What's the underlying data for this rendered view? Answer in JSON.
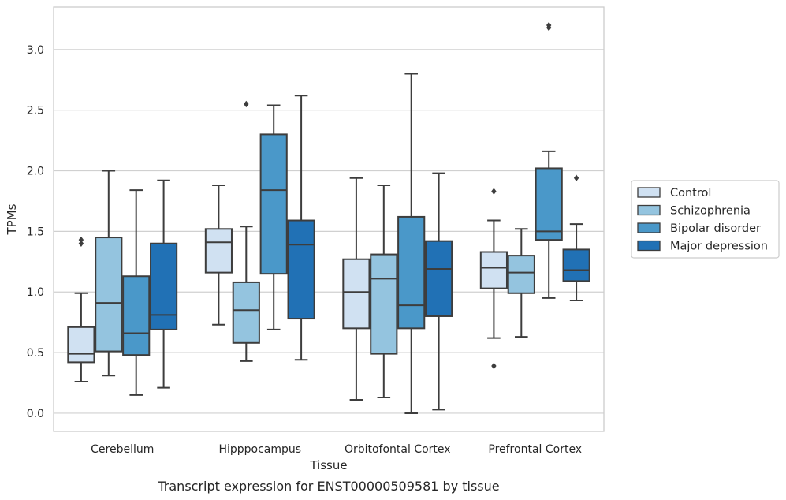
{
  "chart_data": {
    "type": "boxplot",
    "title": "Transcript expression for ENST00000509581 by tissue",
    "xlabel": "Tissue",
    "ylabel": "TPMs",
    "ylim": [
      -0.15,
      3.35
    ],
    "yticks": [
      0.0,
      0.5,
      1.0,
      1.5,
      2.0,
      2.5,
      3.0
    ],
    "ytick_labels": [
      "0.0",
      "0.5",
      "1.0",
      "1.5",
      "2.0",
      "2.5",
      "3.0"
    ],
    "grid": "horizontal",
    "legend_position": "right",
    "categories": [
      "Cerebellum",
      "Hipppocampus",
      "Orbitofontal Cortex",
      "Prefrontal Cortex"
    ],
    "series": [
      {
        "name": "Control",
        "color": "#d0e1f2",
        "boxes": [
          {
            "whislo": 0.26,
            "q1": 0.42,
            "med": 0.49,
            "q3": 0.71,
            "whishi": 0.99,
            "fliers": [
              1.4,
              1.43
            ]
          },
          {
            "whislo": 0.73,
            "q1": 1.16,
            "med": 1.41,
            "q3": 1.52,
            "whishi": 1.88,
            "fliers": []
          },
          {
            "whislo": 0.11,
            "q1": 0.7,
            "med": 1.0,
            "q3": 1.27,
            "whishi": 1.94,
            "fliers": []
          },
          {
            "whislo": 0.62,
            "q1": 1.03,
            "med": 1.2,
            "q3": 1.33,
            "whishi": 1.59,
            "fliers": [
              0.39,
              1.83
            ]
          }
        ]
      },
      {
        "name": "Schizophrenia",
        "color": "#94c4df",
        "boxes": [
          {
            "whislo": 0.31,
            "q1": 0.51,
            "med": 0.91,
            "q3": 1.45,
            "whishi": 2.0,
            "fliers": []
          },
          {
            "whislo": 0.43,
            "q1": 0.58,
            "med": 0.85,
            "q3": 1.08,
            "whishi": 1.54,
            "fliers": [
              2.55
            ]
          },
          {
            "whislo": 0.13,
            "q1": 0.49,
            "med": 1.11,
            "q3": 1.31,
            "whishi": 1.88,
            "fliers": []
          },
          {
            "whislo": 0.63,
            "q1": 0.99,
            "med": 1.16,
            "q3": 1.3,
            "whishi": 1.52,
            "fliers": []
          }
        ]
      },
      {
        "name": "Bipolar disorder",
        "color": "#4a98c9",
        "boxes": [
          {
            "whislo": 0.15,
            "q1": 0.48,
            "med": 0.66,
            "q3": 1.13,
            "whishi": 1.84,
            "fliers": []
          },
          {
            "whislo": 0.69,
            "q1": 1.15,
            "med": 1.84,
            "q3": 2.3,
            "whishi": 2.54,
            "fliers": []
          },
          {
            "whislo": 0.0,
            "q1": 0.7,
            "med": 0.89,
            "q3": 1.62,
            "whishi": 2.8,
            "fliers": []
          },
          {
            "whislo": 0.95,
            "q1": 1.43,
            "med": 1.5,
            "q3": 2.02,
            "whishi": 2.16,
            "fliers": [
              3.18,
              3.2
            ]
          }
        ]
      },
      {
        "name": "Major depression",
        "color": "#2171b5",
        "boxes": [
          {
            "whislo": 0.21,
            "q1": 0.69,
            "med": 0.81,
            "q3": 1.4,
            "whishi": 1.92,
            "fliers": []
          },
          {
            "whislo": 0.44,
            "q1": 0.78,
            "med": 1.39,
            "q3": 1.59,
            "whishi": 2.62,
            "fliers": []
          },
          {
            "whislo": 0.03,
            "q1": 0.8,
            "med": 1.19,
            "q3": 1.42,
            "whishi": 1.98,
            "fliers": []
          },
          {
            "whislo": 0.93,
            "q1": 1.09,
            "med": 1.18,
            "q3": 1.35,
            "whishi": 1.56,
            "fliers": [
              1.94
            ]
          }
        ]
      }
    ]
  }
}
